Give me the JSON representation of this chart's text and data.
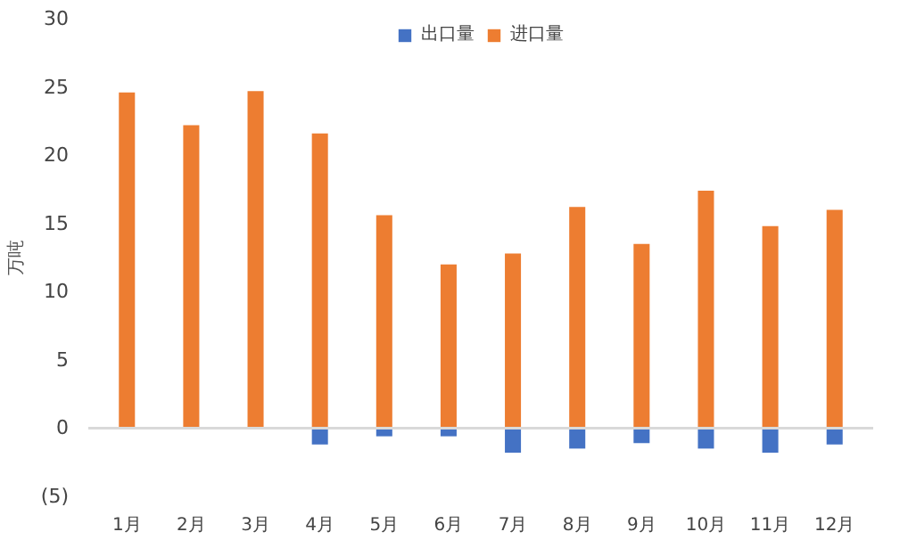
{
  "chart_data": {
    "type": "bar",
    "stacked": true,
    "ylabel": "万吨",
    "categories": [
      "1月",
      "2月",
      "3月",
      "4月",
      "5月",
      "6月",
      "7月",
      "8月",
      "9月",
      "10月",
      "11月",
      "12月"
    ],
    "series": [
      {
        "name": "出口量",
        "color": "#4472c4",
        "values": [
          0,
          0,
          0,
          -1.2,
          -0.6,
          -0.6,
          -1.8,
          -1.5,
          -1.1,
          -1.5,
          -1.8,
          -1.2
        ]
      },
      {
        "name": "进口量",
        "color": "#ed7d31",
        "values": [
          24.6,
          22.2,
          24.7,
          21.6,
          15.6,
          12.0,
          12.8,
          16.2,
          13.5,
          17.4,
          14.8,
          16.0
        ]
      }
    ],
    "ylim": [
      -5,
      30
    ],
    "yticks": [
      {
        "value": -5,
        "label": "(5)"
      },
      0,
      5,
      10,
      15,
      20,
      25,
      30
    ],
    "ref_lines": [
      {
        "axis": "y",
        "value": 0,
        "color": "#d9d9d9"
      }
    ],
    "grid": false,
    "legend": "top"
  }
}
